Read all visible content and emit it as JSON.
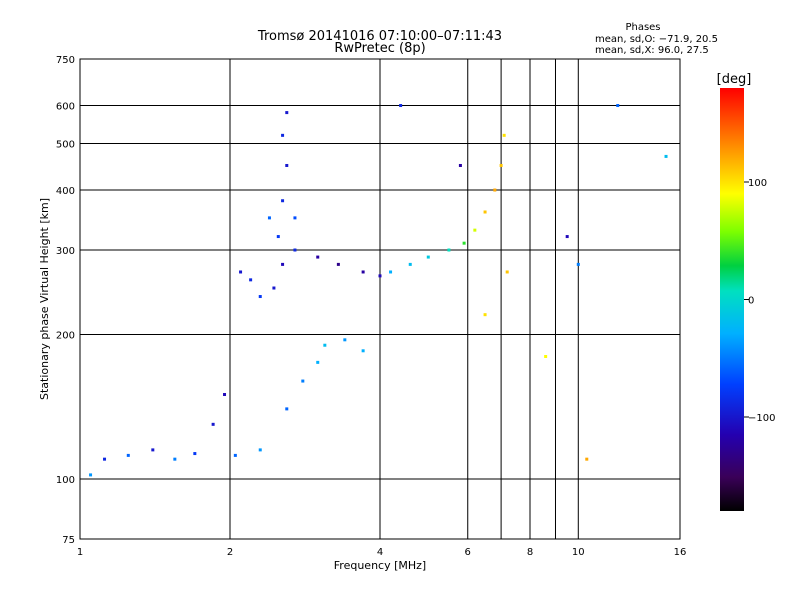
{
  "chart_data": {
    "type": "scatter",
    "title": "Tromsø 20141016 07:10:00–07:11:43",
    "subtitle": "RwPretec (8p)",
    "xlabel": "Frequency [MHz]",
    "ylabel": "Stationary phase Virtual Height [km]",
    "x_scale": "log",
    "y_scale": "log",
    "xlim": [
      1,
      16
    ],
    "ylim": [
      75,
      750
    ],
    "x_ticks": [
      1,
      2,
      4,
      6,
      8,
      10,
      16
    ],
    "x_tick_labels": [
      "1",
      "2",
      "4",
      "6",
      "8",
      "10",
      "16"
    ],
    "x_grid": [
      2,
      4,
      6,
      8,
      10
    ],
    "x_minor_grid": [
      7,
      9
    ],
    "y_ticks": [
      75,
      100,
      200,
      300,
      400,
      500,
      600,
      750
    ],
    "y_tick_labels": [
      "75",
      "100",
      "200",
      "300",
      "400",
      "500",
      "600",
      "750"
    ],
    "y_grid": [
      100,
      200,
      300,
      400,
      500,
      600
    ],
    "grid": true,
    "legend": {
      "title": "Phases",
      "line1": "mean, sd,O: −71.9, 20.5",
      "line2": "mean, sd,X: 96.0, 27.5",
      "position": "top-right"
    },
    "colorbar": {
      "label": "[deg]",
      "range": [
        -180,
        180
      ],
      "ticks": [
        100,
        0,
        -100
      ],
      "tick_labels": [
        "100",
        "0",
        "−100"
      ],
      "colormap": "rainbow (black→purple→blue→cyan→green→yellow→red)"
    },
    "series": [
      {
        "name": "cluster-low-E",
        "points": [
          [
            1.05,
            102,
            -40
          ],
          [
            1.12,
            110,
            -90
          ],
          [
            1.25,
            112,
            -60
          ],
          [
            1.4,
            115,
            -100
          ],
          [
            1.55,
            110,
            -50
          ],
          [
            1.7,
            113,
            -80
          ],
          [
            1.85,
            130,
            -100
          ],
          [
            1.95,
            150,
            -110
          ],
          [
            2.05,
            112,
            -60
          ],
          [
            2.3,
            115,
            -40
          ]
        ]
      },
      {
        "name": "cluster-F1-base",
        "points": [
          [
            2.1,
            270,
            -100
          ],
          [
            2.2,
            260,
            -90
          ],
          [
            2.3,
            240,
            -80
          ],
          [
            2.45,
            250,
            -100
          ],
          [
            2.55,
            280,
            -110
          ],
          [
            2.7,
            300,
            -90
          ],
          [
            3.0,
            290,
            -120
          ],
          [
            3.3,
            280,
            -130
          ],
          [
            3.7,
            270,
            -120
          ],
          [
            4.0,
            265,
            -110
          ]
        ]
      },
      {
        "name": "cluster-F-column",
        "points": [
          [
            2.5,
            320,
            -80
          ],
          [
            2.55,
            380,
            -90
          ],
          [
            2.6,
            450,
            -100
          ],
          [
            2.55,
            520,
            -90
          ],
          [
            2.6,
            580,
            -100
          ],
          [
            2.7,
            350,
            -70
          ],
          [
            2.4,
            350,
            -60
          ]
        ]
      },
      {
        "name": "cluster-F2-O",
        "points": [
          [
            4.2,
            270,
            -30
          ],
          [
            4.6,
            280,
            -20
          ],
          [
            5.0,
            290,
            -10
          ],
          [
            5.5,
            300,
            10
          ],
          [
            5.9,
            310,
            40
          ],
          [
            6.2,
            330,
            80
          ],
          [
            6.5,
            360,
            110
          ],
          [
            6.8,
            400,
            120
          ],
          [
            7.0,
            450,
            110
          ],
          [
            7.1,
            520,
            100
          ]
        ]
      },
      {
        "name": "cluster-mid",
        "points": [
          [
            3.1,
            190,
            -20
          ],
          [
            3.4,
            195,
            -40
          ],
          [
            3.7,
            185,
            -30
          ],
          [
            2.8,
            160,
            -50
          ],
          [
            2.6,
            140,
            -60
          ],
          [
            3.0,
            175,
            -30
          ]
        ]
      },
      {
        "name": "scattered",
        "points": [
          [
            8.6,
            180,
            90
          ],
          [
            9.5,
            320,
            -110
          ],
          [
            10.0,
            280,
            -50
          ],
          [
            10.4,
            110,
            120
          ],
          [
            12.0,
            600,
            -60
          ],
          [
            15.0,
            470,
            -20
          ],
          [
            6.5,
            220,
            100
          ],
          [
            7.2,
            270,
            110
          ],
          [
            5.8,
            450,
            -120
          ],
          [
            4.4,
            600,
            -90
          ]
        ]
      }
    ]
  }
}
